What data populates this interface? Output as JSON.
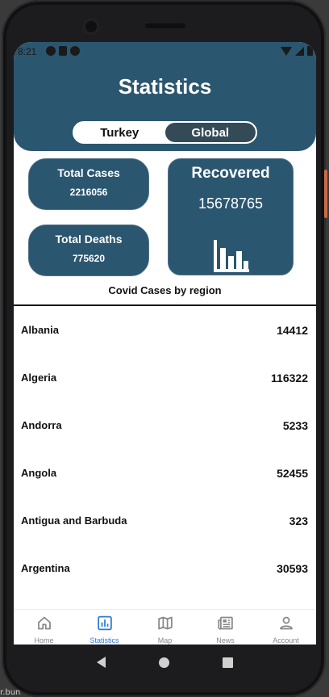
{
  "status_bar": {
    "time": "8:21"
  },
  "header": {
    "title": "Statistics"
  },
  "region_toggle": {
    "options": [
      "Turkey",
      "Global"
    ],
    "selected": "Global"
  },
  "stats": {
    "total_cases": {
      "label": "Total Cases",
      "value": "2216056"
    },
    "total_deaths": {
      "label": "Total Deaths",
      "value": "775620"
    },
    "recovered": {
      "label": "Recovered",
      "value": "15678765"
    }
  },
  "section_title": "Covid Cases by region",
  "regions": [
    {
      "name": "Albania",
      "value": "14412"
    },
    {
      "name": "Algeria",
      "value": "116322"
    },
    {
      "name": "Andorra",
      "value": "5233"
    },
    {
      "name": "Angola",
      "value": "52455"
    },
    {
      "name": "Antigua and Barbuda",
      "value": "323"
    },
    {
      "name": "Argentina",
      "value": "30593"
    }
  ],
  "bottom_nav": {
    "items": [
      {
        "label": "Home",
        "icon": "home-icon"
      },
      {
        "label": "Statistics",
        "icon": "bar-chart-icon",
        "active": true
      },
      {
        "label": "Map",
        "icon": "map-icon"
      },
      {
        "label": "News",
        "icon": "newspaper-icon"
      },
      {
        "label": "Account",
        "icon": "account-icon"
      }
    ]
  },
  "colors": {
    "primary": "#2b566f",
    "toggle_active": "#344a57",
    "nav_active": "#2a7bd4",
    "nav_inactive": "#888888"
  },
  "tray_text": "r.bun"
}
